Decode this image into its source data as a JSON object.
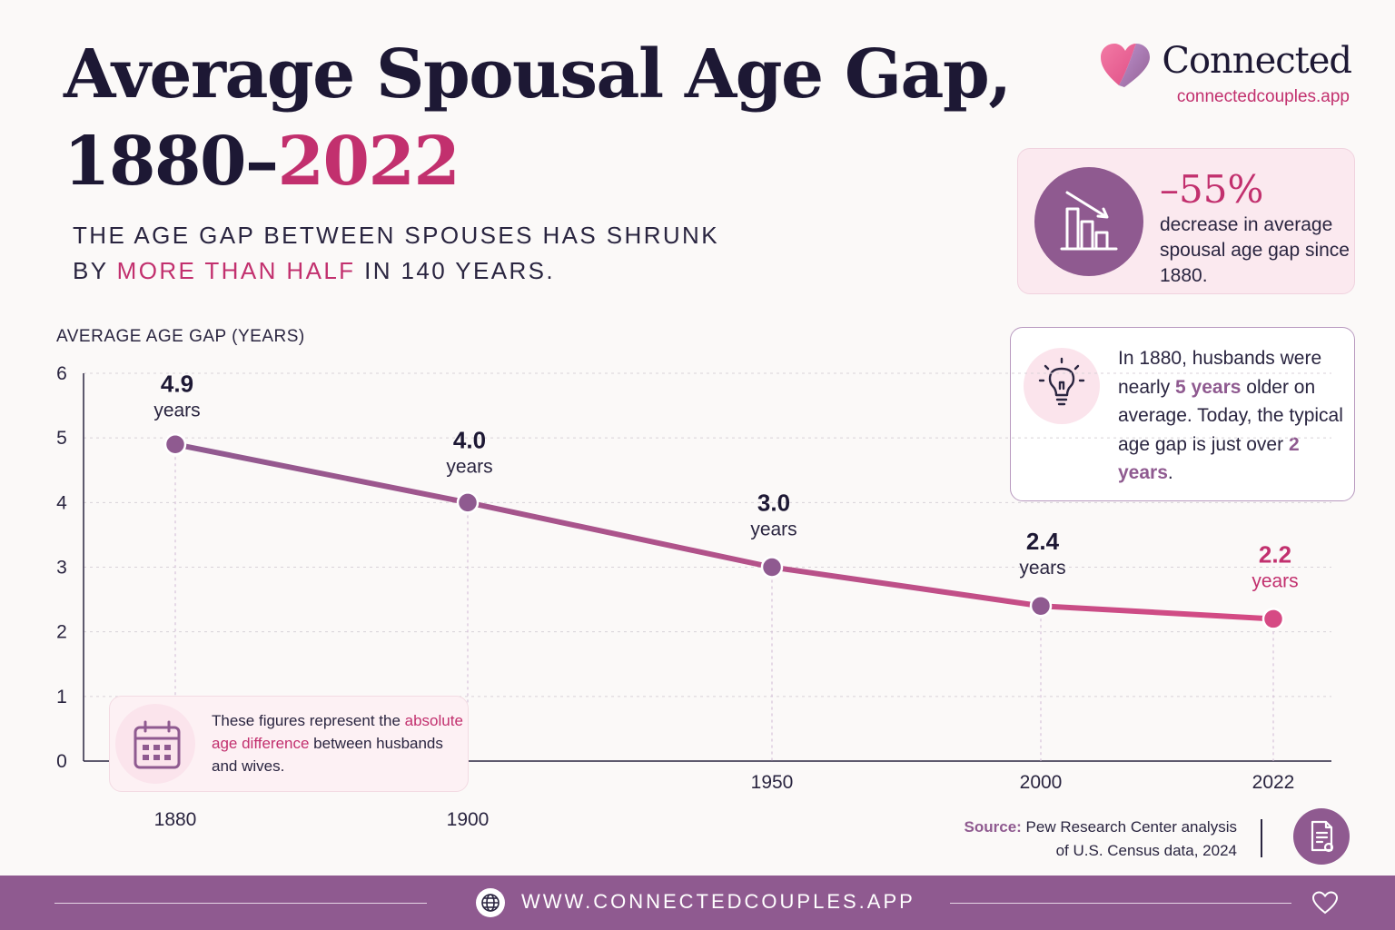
{
  "header": {
    "title_line1": "Average Spousal Age Gap,",
    "title_line2_prefix": "1880–",
    "title_line2_accent": "2022",
    "subtitle_line1": "THE AGE GAP BETWEEN SPOUSES HAS SHRUNK",
    "subtitle_line2_prefix": "BY ",
    "subtitle_line2_accent": "MORE THAN HALF",
    "subtitle_line2_suffix": " IN 140 YEARS."
  },
  "brand": {
    "name": "Connected",
    "url": "connectedcouples.app",
    "icon": "heart-icon"
  },
  "stat_card": {
    "value": "–55%",
    "description": "decrease in average spousal age gap since 1880.",
    "icon": "declining-bar-chart-icon"
  },
  "insight_card": {
    "text_part1": "In 1880, husbands were nearly ",
    "text_accent1": "5 years",
    "text_part2": " older on average. Today, the typical age gap is just over ",
    "text_accent2": "2 years",
    "text_part3": ".",
    "icon": "lightbulb-icon"
  },
  "note_card": {
    "text_part1": "These figures represent the ",
    "text_accent": "absolute age difference",
    "text_part2": " between husbands and wives.",
    "icon": "calendar-icon"
  },
  "source": {
    "label": "Source:",
    "text_line1": " Pew Research Center analysis",
    "text_line2": "of U.S. Census data, 2024",
    "icon": "document-icon"
  },
  "footer": {
    "url": "WWW.CONNECTEDCOUPLES.APP",
    "globe_icon": "globe-icon",
    "heart_icon": "heart-outline-icon"
  },
  "colors": {
    "accent_pink": "#c2306e",
    "accent_purple": "#8f5a90",
    "line_start": "#8f5a90",
    "line_end": "#d64a84"
  },
  "chart_data": {
    "type": "line",
    "ylabel": "AVERAGE AGE GAP (YEARS)",
    "ylim": [
      0,
      6
    ],
    "yticks": [
      0,
      1,
      2,
      3,
      4,
      5,
      6
    ],
    "x": [
      "1880",
      "1900",
      "1950",
      "2000",
      "2022"
    ],
    "series": [
      {
        "values": [
          4.9,
          4.0,
          3.0,
          2.4,
          2.2
        ],
        "labels": [
          "4.9",
          "4.0",
          "3.0",
          "2.4",
          "2.2"
        ]
      }
    ],
    "value_unit": "years",
    "grid": true,
    "legend": "none"
  }
}
